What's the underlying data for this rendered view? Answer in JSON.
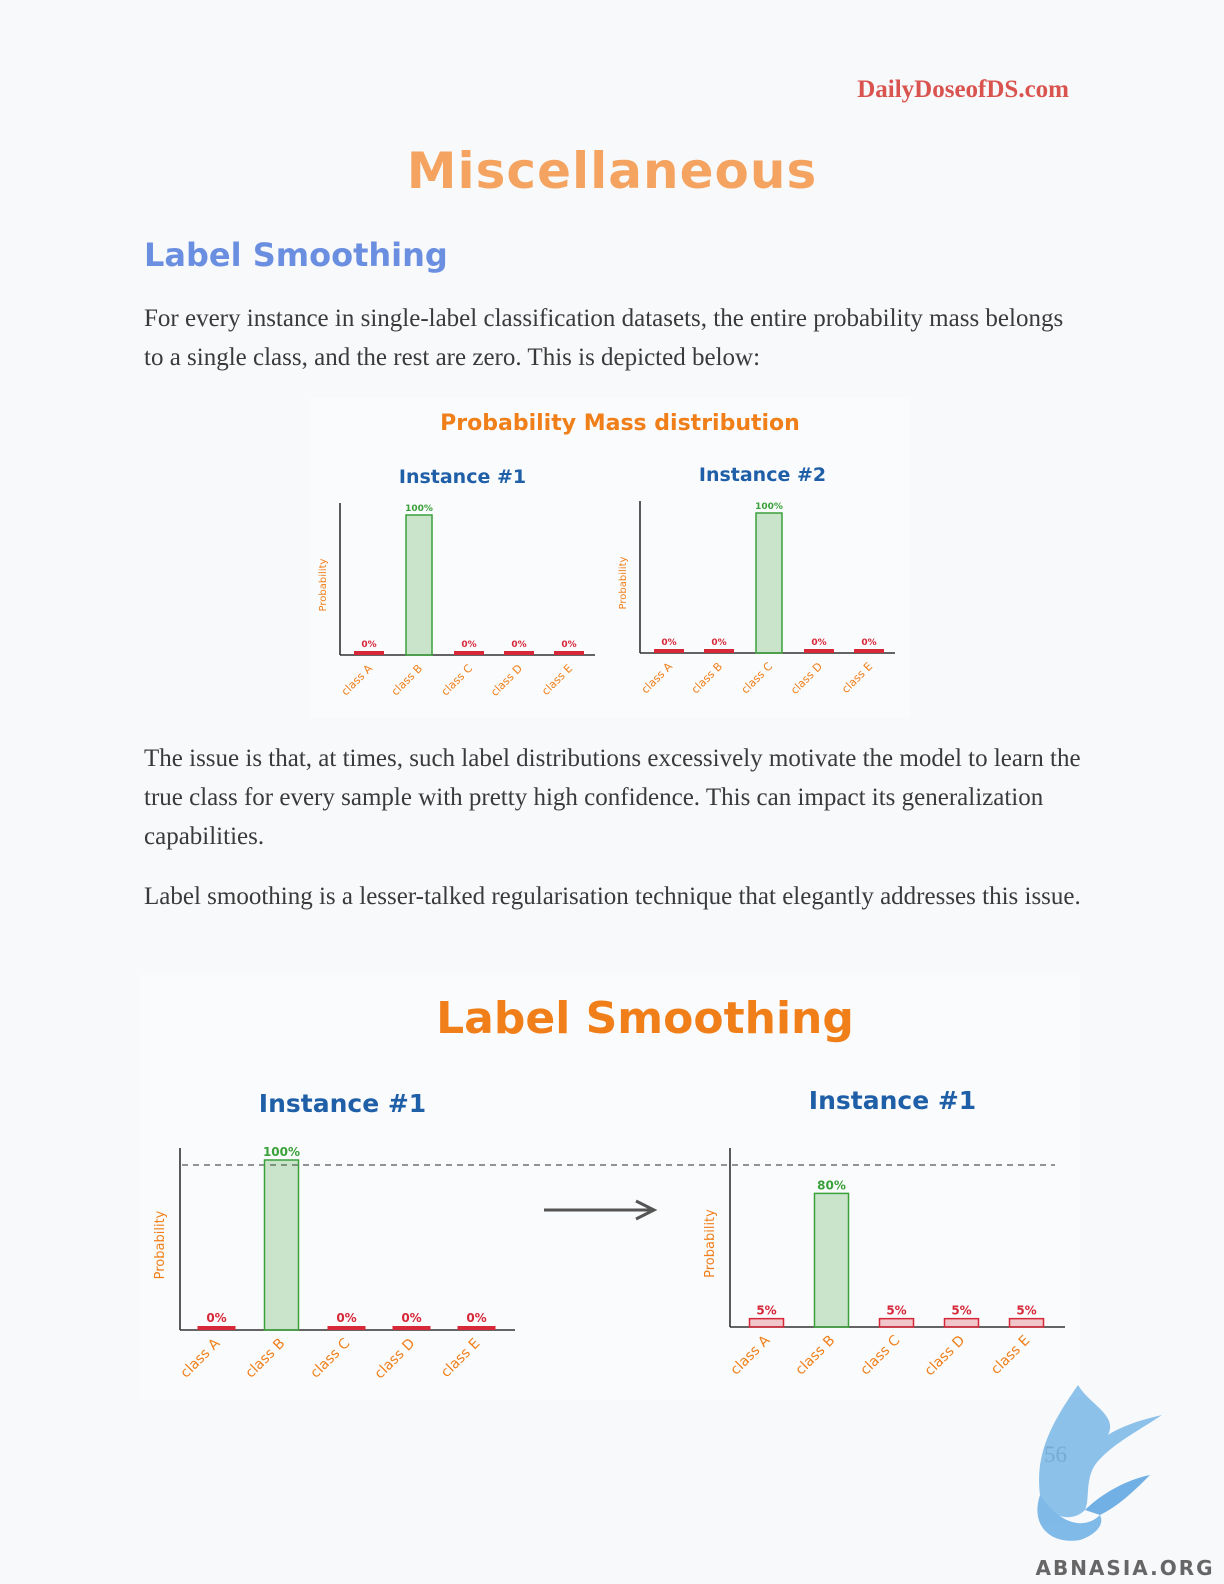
{
  "header": {
    "site": "DailyDoseofDS.com"
  },
  "page": {
    "title": "Miscellaneous",
    "section_heading": "Label Smoothing",
    "paragraphs": [
      "For every instance in single-label classification datasets, the entire probability mass belongs to a single class, and the rest are zero. This is depicted below:",
      "The issue is that, at times, such label distributions excessively motivate the model to learn the true class for every sample with pretty high confidence. This can impact its generalization capabilities.",
      "Label smoothing is a lesser-talked regularisation technique that elegantly addresses this issue."
    ],
    "page_number": "56"
  },
  "figure1": {
    "title": "Probability Mass distribution"
  },
  "figure2": {
    "title": "Label Smoothing"
  },
  "chart_data": [
    {
      "type": "bar",
      "title": "Instance #1",
      "ylabel": "Probability",
      "categories": [
        "class A",
        "class B",
        "class C",
        "class D",
        "class E"
      ],
      "values": [
        0,
        100,
        0,
        0,
        0
      ],
      "value_labels": [
        "0%",
        "100%",
        "0%",
        "0%",
        "0%"
      ],
      "ylim": [
        0,
        100
      ]
    },
    {
      "type": "bar",
      "title": "Instance #2",
      "ylabel": "Probability",
      "categories": [
        "class A",
        "class B",
        "class C",
        "class D",
        "class E"
      ],
      "values": [
        0,
        0,
        100,
        0,
        0
      ],
      "value_labels": [
        "0%",
        "0%",
        "100%",
        "0%",
        "0%"
      ],
      "ylim": [
        0,
        100
      ]
    },
    {
      "type": "bar",
      "title": "Instance #1",
      "ylabel": "Probability",
      "categories": [
        "class A",
        "class B",
        "class C",
        "class D",
        "class E"
      ],
      "values": [
        0,
        100,
        0,
        0,
        0
      ],
      "value_labels": [
        "0%",
        "100%",
        "0%",
        "0%",
        "0%"
      ],
      "ylim": [
        0,
        100
      ]
    },
    {
      "type": "bar",
      "title": "Instance #1",
      "ylabel": "Probability",
      "categories": [
        "class A",
        "class B",
        "class C",
        "class D",
        "class E"
      ],
      "values": [
        5,
        80,
        5,
        5,
        5
      ],
      "value_labels": [
        "5%",
        "80%",
        "5%",
        "5%",
        "5%"
      ],
      "ylim": [
        0,
        100
      ]
    }
  ],
  "colors": {
    "green_bar": "#3aa03a",
    "red_bar": "#d62839",
    "orange_text": "#f07f1a",
    "blue_title": "#1f5fa8"
  },
  "watermark": {
    "text": "ABNASIA.ORG"
  }
}
